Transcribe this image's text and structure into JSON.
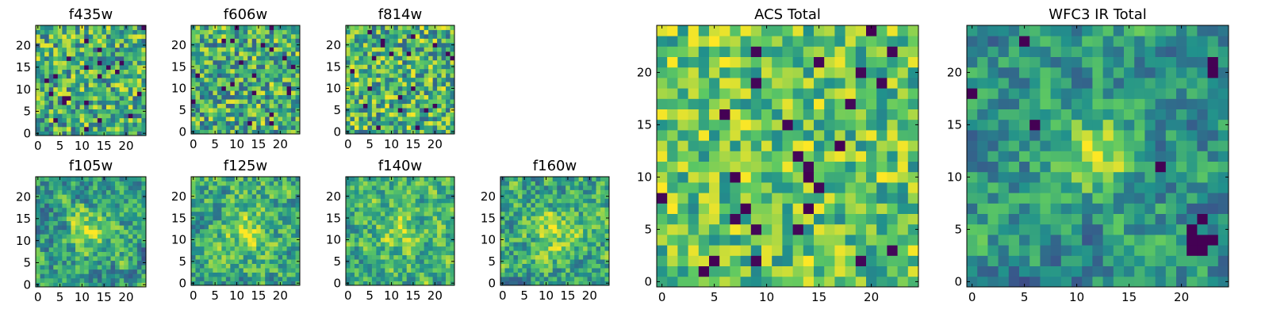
{
  "chart_data": {
    "type": "heatmap",
    "colormap": "viridis",
    "colormap_stops": [
      "#440154",
      "#3b528b",
      "#21918c",
      "#5ec962",
      "#fde725"
    ],
    "grid_size": 25,
    "panels": [
      {
        "id": "f435w",
        "title": "f435w",
        "xticks": [
          0,
          5,
          10,
          15,
          20
        ],
        "yticks": [
          0,
          5,
          10,
          15,
          20
        ],
        "x_range": [
          0,
          24
        ],
        "y_range": [
          0,
          24
        ],
        "texture": "noise",
        "blobs": [],
        "base": 0.62,
        "spread": 0.22,
        "seed": 11
      },
      {
        "id": "f606w",
        "title": "f606w",
        "xticks": [
          0,
          5,
          10,
          15,
          20
        ],
        "yticks": [
          0,
          5,
          10,
          15,
          20
        ],
        "x_range": [
          0,
          24
        ],
        "y_range": [
          0,
          24
        ],
        "texture": "noise",
        "blobs": [],
        "base": 0.62,
        "spread": 0.22,
        "seed": 23
      },
      {
        "id": "f814w",
        "title": "f814w",
        "xticks": [
          0,
          5,
          10,
          15,
          20
        ],
        "yticks": [
          0,
          5,
          10,
          15,
          20
        ],
        "x_range": [
          0,
          24
        ],
        "y_range": [
          0,
          24
        ],
        "texture": "noise",
        "blobs": [],
        "base": 0.64,
        "spread": 0.22,
        "seed": 37
      },
      {
        "id": "f105w",
        "title": "f105w",
        "xticks": [
          0,
          5,
          10,
          15,
          20
        ],
        "yticks": [
          0,
          5,
          10,
          15,
          20
        ],
        "x_range": [
          0,
          24
        ],
        "y_range": [
          0,
          24
        ],
        "texture": "smooth",
        "blobs": [
          [
            12,
            12,
            0.35,
            3.5
          ]
        ],
        "base": 0.55,
        "spread": 0.25,
        "seed": 51
      },
      {
        "id": "f125w",
        "title": "f125w",
        "xticks": [
          0,
          5,
          10,
          15,
          20
        ],
        "yticks": [
          0,
          5,
          10,
          15,
          20
        ],
        "x_range": [
          0,
          24
        ],
        "y_range": [
          0,
          24
        ],
        "texture": "smooth",
        "blobs": [
          [
            12,
            12,
            0.25,
            3.5
          ]
        ],
        "base": 0.62,
        "spread": 0.25,
        "seed": 67
      },
      {
        "id": "f140w",
        "title": "f140w",
        "xticks": [
          0,
          5,
          10,
          15,
          20
        ],
        "yticks": [
          0,
          5,
          10,
          15,
          20
        ],
        "x_range": [
          0,
          24
        ],
        "y_range": [
          0,
          24
        ],
        "texture": "smooth",
        "blobs": [
          [
            12,
            12,
            0.2,
            3.5
          ]
        ],
        "base": 0.64,
        "spread": 0.24,
        "seed": 79
      },
      {
        "id": "f160w",
        "title": "f160w",
        "xticks": [
          0,
          5,
          10,
          15,
          20
        ],
        "yticks": [
          0,
          5,
          10,
          15,
          20
        ],
        "x_range": [
          0,
          24
        ],
        "y_range": [
          0,
          24
        ],
        "texture": "smooth",
        "blobs": [
          [
            12,
            12,
            0.25,
            3.5
          ]
        ],
        "base": 0.6,
        "spread": 0.25,
        "seed": 97
      },
      {
        "id": "acs-total",
        "title": "ACS Total",
        "xticks": [
          0,
          5,
          10,
          15,
          20
        ],
        "yticks": [
          0,
          5,
          10,
          15,
          20
        ],
        "x_range": [
          0,
          24
        ],
        "y_range": [
          0,
          24
        ],
        "texture": "noise",
        "blobs": [],
        "base": 0.72,
        "spread": 0.18,
        "seed": 131,
        "dark_pixels": [
          [
            7,
            10
          ],
          [
            14,
            10
          ],
          [
            17,
            13
          ],
          [
            8,
            7
          ],
          [
            14,
            7
          ],
          [
            4,
            1
          ],
          [
            5,
            2
          ],
          [
            20,
            24
          ],
          [
            6,
            16
          ]
        ]
      },
      {
        "id": "wfc3-ir-total",
        "title": "WFC3 IR Total",
        "xticks": [
          0,
          5,
          10,
          15,
          20
        ],
        "yticks": [
          0,
          5,
          10,
          15,
          20
        ],
        "x_range": [
          0,
          24
        ],
        "y_range": [
          0,
          24
        ],
        "texture": "smooth",
        "blobs": [
          [
            12,
            12,
            0.4,
            2.5
          ]
        ],
        "base": 0.52,
        "spread": 0.22,
        "seed": 157,
        "dark_pixels": [
          [
            5,
            23
          ],
          [
            0,
            18
          ],
          [
            23,
            21
          ],
          [
            23,
            20
          ],
          [
            6,
            15
          ],
          [
            18,
            11
          ],
          [
            21,
            4
          ],
          [
            22,
            4
          ],
          [
            21,
            3
          ],
          [
            22,
            3
          ],
          [
            23,
            4
          ],
          [
            21,
            5
          ],
          [
            22,
            6
          ]
        ]
      }
    ]
  }
}
